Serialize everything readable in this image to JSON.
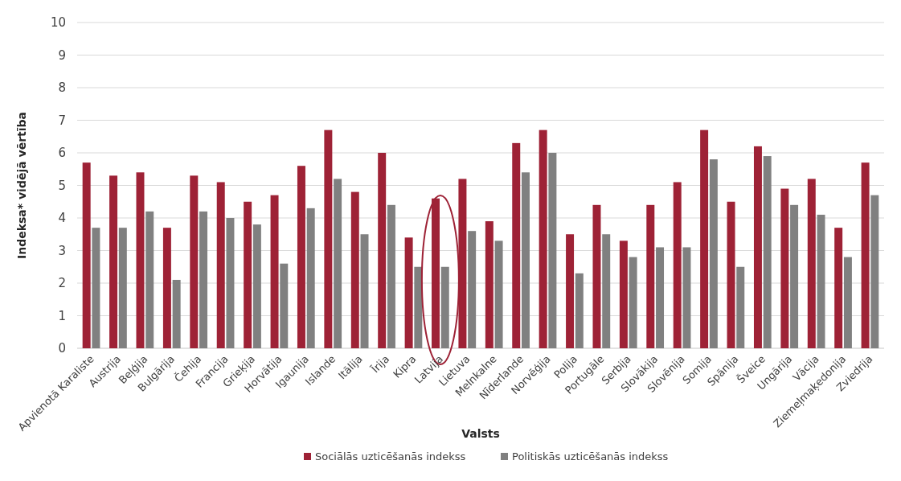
{
  "chart_data": {
    "type": "bar",
    "xlabel": "Valsts",
    "ylabel": "Indeksa* vidējā vērtība",
    "categories": [
      "Apvienotā Karaliste",
      "Austrija",
      "Beļģija",
      "Bulgārija",
      "Čehija",
      "Francija",
      "Grieķija",
      "Horvātija",
      "Igaunija",
      "Islande",
      "Itālija",
      "Īrija",
      "Kipra",
      "Latvija",
      "Lietuva",
      "Melnkalne",
      "Nīderlande",
      "Norvēģija",
      "Polija",
      "Portugāle",
      "Serbija",
      "Slovākija",
      "Slovēnija",
      "Somija",
      "Spānija",
      "Šveice",
      "Ungārija",
      "Vācija",
      "Ziemeļmaķedonija",
      "Zviedrija"
    ],
    "series": [
      {
        "name": "Sociālās uzticēšanās indekss",
        "color": "#9e2236",
        "values": [
          5.7,
          5.3,
          5.4,
          3.7,
          5.3,
          5.1,
          4.5,
          4.7,
          5.6,
          6.7,
          4.8,
          6.0,
          3.4,
          4.6,
          5.2,
          3.9,
          6.3,
          6.7,
          3.5,
          4.4,
          3.3,
          4.4,
          5.1,
          6.7,
          4.5,
          6.2,
          4.9,
          5.2,
          3.7,
          5.7
        ]
      },
      {
        "name": "Politiskās uzticēšanās indekss",
        "color": "#808080",
        "values": [
          3.7,
          3.7,
          4.2,
          2.1,
          4.2,
          4.0,
          3.8,
          2.6,
          4.3,
          5.2,
          3.5,
          4.4,
          2.5,
          2.5,
          3.6,
          3.3,
          5.4,
          6.0,
          2.3,
          3.5,
          2.8,
          3.1,
          3.1,
          5.8,
          2.5,
          5.9,
          4.4,
          4.1,
          2.8,
          4.7
        ]
      }
    ],
    "ylim": [
      0,
      10
    ],
    "yticks": [
      0,
      1,
      2,
      3,
      4,
      5,
      6,
      7,
      8,
      9,
      10
    ],
    "grid": "y",
    "legend": "bottom"
  }
}
